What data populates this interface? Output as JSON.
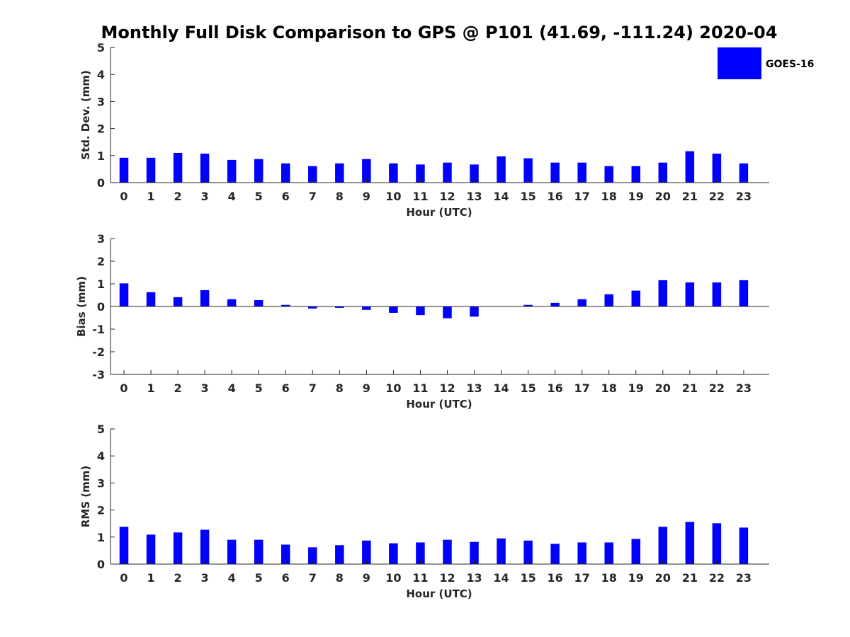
{
  "title": "Monthly Full Disk Comparison to GPS @ P101 (41.69, -111.24) 2020-04",
  "legend": {
    "label": "GOES-16",
    "color": "#0000ff"
  },
  "chart_data": [
    {
      "type": "bar",
      "title": "Monthly Full Disk Comparison to GPS @ P101 (41.69, -111.24) 2020-04",
      "xlabel": "Hour (UTC)",
      "ylabel": "Std. Dev. (mm)",
      "ylim": [
        0,
        5
      ],
      "yticks": [
        0,
        1,
        2,
        3,
        4,
        5
      ],
      "categories": [
        "0",
        "1",
        "2",
        "3",
        "4",
        "5",
        "6",
        "7",
        "8",
        "9",
        "10",
        "11",
        "12",
        "13",
        "14",
        "15",
        "16",
        "17",
        "18",
        "19",
        "20",
        "21",
        "22",
        "23"
      ],
      "series": [
        {
          "name": "GOES-16",
          "color": "#0000ff",
          "values": [
            0.92,
            0.92,
            1.1,
            1.07,
            0.84,
            0.87,
            0.71,
            0.61,
            0.71,
            0.87,
            0.71,
            0.67,
            0.74,
            0.67,
            0.97,
            0.9,
            0.74,
            0.74,
            0.61,
            0.61,
            0.74,
            1.16,
            1.07,
            0.71
          ]
        }
      ],
      "legend": "top-right",
      "grid": false
    },
    {
      "type": "bar",
      "xlabel": "Hour (UTC)",
      "ylabel": "Bias (mm)",
      "ylim": [
        -3,
        3
      ],
      "yticks": [
        -3,
        -2,
        -1,
        0,
        1,
        2,
        3
      ],
      "categories": [
        "0",
        "1",
        "2",
        "3",
        "4",
        "5",
        "6",
        "7",
        "8",
        "9",
        "10",
        "11",
        "12",
        "13",
        "14",
        "15",
        "16",
        "17",
        "18",
        "19",
        "20",
        "21",
        "22",
        "23"
      ],
      "series": [
        {
          "name": "GOES-16",
          "color": "#0000ff",
          "values": [
            1.02,
            0.63,
            0.41,
            0.72,
            0.32,
            0.28,
            0.07,
            -0.09,
            -0.06,
            -0.15,
            -0.28,
            -0.38,
            -0.52,
            -0.45,
            0.0,
            0.07,
            0.16,
            0.32,
            0.54,
            0.7,
            1.16,
            1.06,
            1.06,
            1.16
          ]
        }
      ],
      "grid": false
    },
    {
      "type": "bar",
      "xlabel": "Hour (UTC)",
      "ylabel": "RMS (mm)",
      "ylim": [
        0,
        5
      ],
      "yticks": [
        0,
        1,
        2,
        3,
        4,
        5
      ],
      "categories": [
        "0",
        "1",
        "2",
        "3",
        "4",
        "5",
        "6",
        "7",
        "8",
        "9",
        "10",
        "11",
        "12",
        "13",
        "14",
        "15",
        "16",
        "17",
        "18",
        "19",
        "20",
        "21",
        "22",
        "23"
      ],
      "series": [
        {
          "name": "GOES-16",
          "color": "#0000ff",
          "values": [
            1.38,
            1.09,
            1.17,
            1.27,
            0.9,
            0.9,
            0.72,
            0.62,
            0.7,
            0.87,
            0.77,
            0.8,
            0.9,
            0.82,
            0.95,
            0.87,
            0.75,
            0.8,
            0.8,
            0.93,
            1.38,
            1.56,
            1.51,
            1.35
          ]
        }
      ],
      "grid": false
    }
  ]
}
